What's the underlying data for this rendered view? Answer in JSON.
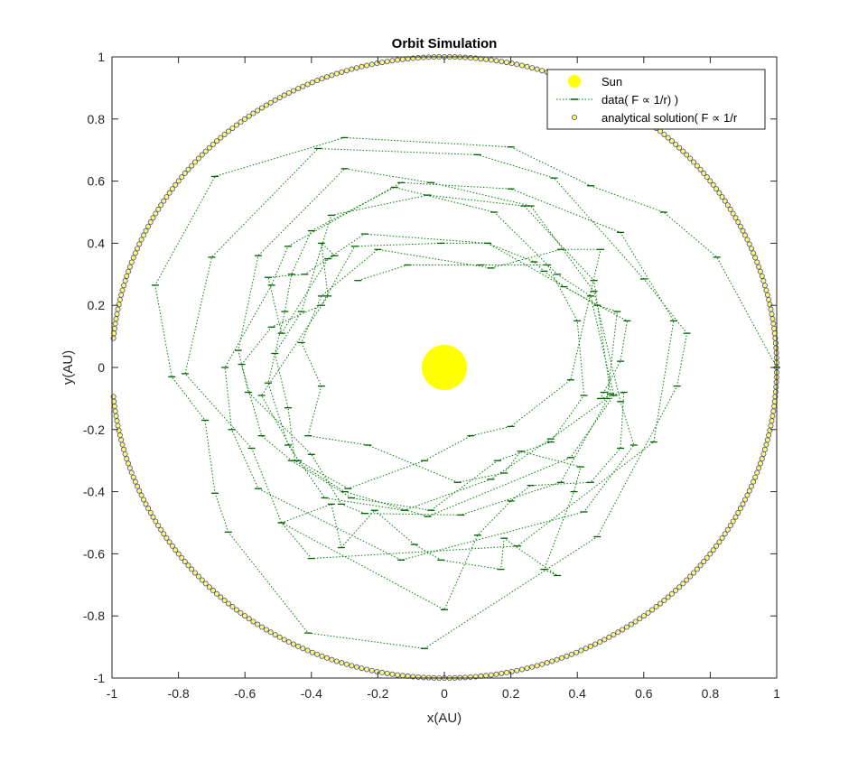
{
  "chart_data": {
    "type": "scatter",
    "title": "Orbit Simulation",
    "xlabel": "x(AU)",
    "ylabel": "y(AU)",
    "xlim": [
      -1,
      1
    ],
    "ylim": [
      -1,
      1
    ],
    "grid": false,
    "legend_position": "top-right",
    "x_ticks": [
      -1,
      -0.8,
      -0.6,
      -0.4,
      -0.2,
      0,
      0.2,
      0.4,
      0.6,
      0.8,
      1
    ],
    "y_ticks": [
      -1,
      -0.8,
      -0.6,
      -0.4,
      -0.2,
      0,
      0.2,
      0.4,
      0.6,
      0.8,
      1
    ],
    "x_tick_labels": [
      "-1",
      "-0.8",
      "-0.6",
      "-0.4",
      "-0.2",
      "0",
      "0.2",
      "0.4",
      "0.6",
      "0.8",
      "1"
    ],
    "y_tick_labels": [
      "-1",
      "-0.8",
      "-0.6",
      "-0.4",
      "-0.2",
      "0",
      "0.2",
      "0.4",
      "0.6",
      "0.8",
      "1"
    ],
    "series": [
      {
        "name": "Sun",
        "style": "marker",
        "color": "#ffff00",
        "points": [
          [
            0,
            0
          ]
        ]
      },
      {
        "name": "data( F ∝ 1/r) )",
        "style": "dotted-line-with-dash-markers",
        "color": "#008000",
        "points": [
          [
            1.0,
            0.0
          ],
          [
            0.82,
            0.355
          ],
          [
            0.66,
            0.5
          ],
          [
            0.44,
            0.585
          ],
          [
            0.2,
            0.71
          ],
          [
            -0.3,
            0.74
          ],
          [
            -0.69,
            0.615
          ],
          [
            -0.87,
            0.265
          ],
          [
            -0.82,
            -0.03
          ],
          [
            -0.72,
            -0.17
          ],
          [
            -0.69,
            -0.405
          ],
          [
            -0.65,
            -0.53
          ],
          [
            -0.41,
            -0.855
          ],
          [
            -0.06,
            -0.905
          ],
          [
            0.46,
            -0.545
          ],
          [
            0.7,
            -0.06
          ],
          [
            0.73,
            0.11
          ],
          [
            0.6,
            0.285
          ],
          [
            0.33,
            0.61
          ],
          [
            0.1,
            0.685
          ],
          [
            -0.38,
            0.705
          ],
          [
            -0.7,
            0.355
          ],
          [
            -0.78,
            -0.02
          ],
          [
            -0.58,
            -0.26
          ],
          [
            -0.49,
            -0.5
          ],
          [
            -0.4,
            -0.615
          ],
          [
            0.22,
            -0.575
          ],
          [
            0.63,
            -0.24
          ],
          [
            0.69,
            0.15
          ],
          [
            0.53,
            0.435
          ],
          [
            0.2,
            0.575
          ],
          [
            -0.13,
            0.595
          ],
          [
            -0.47,
            0.39
          ],
          [
            -0.52,
            0.265
          ],
          [
            -0.66,
            0.0
          ],
          [
            -0.64,
            -0.2
          ],
          [
            -0.56,
            -0.39
          ],
          [
            -0.13,
            -0.62
          ],
          [
            0.42,
            -0.465
          ],
          [
            0.57,
            -0.25
          ],
          [
            0.53,
            -0.11
          ],
          [
            0.45,
            0.245
          ],
          [
            0.26,
            0.52
          ],
          [
            -0.04,
            0.595
          ],
          [
            -0.3,
            0.64
          ],
          [
            -0.56,
            0.36
          ],
          [
            -0.62,
            0.055
          ],
          [
            -0.59,
            -0.08
          ],
          [
            -0.4,
            -0.28
          ],
          [
            -0.31,
            -0.44
          ],
          [
            -0.24,
            -0.47
          ],
          [
            0.05,
            -0.475
          ],
          [
            0.35,
            -0.37
          ],
          [
            0.5,
            -0.085
          ],
          [
            0.45,
            0.28
          ],
          [
            0.24,
            0.52
          ],
          [
            -0.05,
            0.555
          ],
          [
            -0.34,
            0.49
          ],
          [
            -0.43,
            0.18
          ],
          [
            -0.51,
            0.045
          ],
          [
            -0.47,
            -0.13
          ],
          [
            -0.45,
            -0.3
          ],
          [
            -0.3,
            -0.4
          ],
          [
            -0.05,
            -0.48
          ],
          [
            0.38,
            -0.29
          ],
          [
            0.51,
            -0.09
          ],
          [
            0.44,
            0.23
          ],
          [
            0.34,
            0.3
          ],
          [
            0.15,
            0.5
          ],
          [
            -0.15,
            0.58
          ],
          [
            -0.4,
            0.44
          ],
          [
            -0.46,
            0.3
          ],
          [
            -0.48,
            0.18
          ],
          [
            -0.53,
            -0.05
          ],
          [
            -0.47,
            -0.25
          ],
          [
            -0.36,
            -0.42
          ],
          [
            -0.12,
            -0.46
          ],
          [
            0.14,
            -0.36
          ],
          [
            0.32,
            -0.23
          ],
          [
            0.49,
            -0.1
          ],
          [
            0.52,
            0.18
          ],
          [
            0.46,
            0.2
          ],
          [
            0.13,
            0.4
          ],
          [
            -0.24,
            0.43
          ],
          [
            -0.42,
            0.3
          ],
          [
            -0.53,
            0.29
          ],
          [
            -0.49,
            0.11
          ],
          [
            -0.35,
            0.35
          ],
          [
            -0.33,
            0.36
          ],
          [
            -0.37,
            0.4
          ],
          [
            -0.35,
            0.23
          ],
          [
            -0.55,
            -0.09
          ],
          [
            -0.44,
            -0.3
          ],
          [
            -0.29,
            -0.39
          ],
          [
            -0.06,
            -0.3
          ],
          [
            0.08,
            -0.22
          ],
          [
            0.2,
            -0.19
          ],
          [
            0.38,
            -0.04
          ],
          [
            0.47,
            0.38
          ],
          [
            0.35,
            0.38
          ],
          [
            0.14,
            0.32
          ],
          [
            -0.2,
            0.38
          ],
          [
            -0.37,
            0.23
          ],
          [
            -0.43,
            0.08
          ],
          [
            -0.37,
            -0.06
          ],
          [
            -0.41,
            -0.22
          ],
          [
            -0.23,
            -0.25
          ],
          [
            0.04,
            -0.37
          ],
          [
            0.18,
            -0.34
          ],
          [
            0.23,
            -0.27
          ],
          [
            0.41,
            -0.32
          ],
          [
            0.39,
            -0.4
          ],
          [
            0.3,
            -0.65
          ],
          [
            0.34,
            -0.67
          ],
          [
            0.18,
            -0.55
          ],
          [
            0.17,
            -0.65
          ],
          [
            -0.01,
            -0.62
          ],
          [
            -0.09,
            -0.57
          ],
          [
            -0.21,
            -0.46
          ],
          [
            -0.31,
            -0.58
          ],
          [
            -0.34,
            -0.44
          ],
          [
            -0.49,
            -0.5
          ],
          [
            0.0,
            -0.78
          ],
          [
            0.1,
            -0.54
          ],
          [
            0.2,
            -0.43
          ],
          [
            0.26,
            -0.38
          ],
          [
            0.44,
            -0.37
          ],
          [
            0.53,
            -0.26
          ],
          [
            0.54,
            -0.08
          ],
          [
            0.47,
            -0.1
          ],
          [
            0.48,
            -0.08
          ],
          [
            0.53,
            0.02
          ],
          [
            0.55,
            0.15
          ],
          [
            0.36,
            0.26
          ],
          [
            0.3,
            0.31
          ],
          [
            0.27,
            0.34
          ],
          [
            0.13,
            0.4
          ],
          [
            -0.01,
            0.4
          ],
          [
            -0.27,
            0.39
          ],
          [
            -0.37,
            0.2
          ],
          [
            -0.52,
            0.13
          ],
          [
            -0.61,
            0.01
          ],
          [
            -0.55,
            -0.22
          ],
          [
            -0.46,
            -0.3
          ],
          [
            -0.28,
            -0.42
          ],
          [
            -0.04,
            -0.46
          ],
          [
            0.16,
            -0.3
          ],
          [
            0.32,
            -0.24
          ],
          [
            0.42,
            -0.09
          ],
          [
            0.4,
            0.15
          ],
          [
            0.31,
            0.33
          ],
          [
            0.11,
            0.33
          ],
          [
            -0.11,
            0.33
          ],
          [
            -0.26,
            0.28
          ]
        ]
      },
      {
        "name": "analytical solution( F ∝ 1/r",
        "style": "circle-markers",
        "color": "#ffff66",
        "edge_color": "#4a4a9a",
        "radius_au": 1.0,
        "point_count": 400,
        "gap_near_x_negative": true
      }
    ]
  }
}
